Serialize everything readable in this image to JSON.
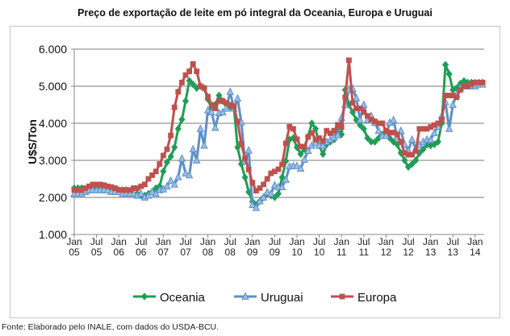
{
  "chart_data": {
    "type": "line",
    "title": "Preço de exportação de leite em pó integral da Oceania, Europa e Uruguai",
    "ylabel": "U$S/Ton",
    "xlabel": "",
    "ylim": [
      1000,
      6000
    ],
    "yticks": [
      "1.000",
      "2.000",
      "3.000",
      "4.000",
      "5.000",
      "6.000"
    ],
    "ytick_values": [
      1000,
      2000,
      3000,
      4000,
      5000,
      6000
    ],
    "xticks": [
      [
        "Jan",
        "05"
      ],
      [
        "Jul",
        "05"
      ],
      [
        "Jan",
        "06"
      ],
      [
        "Jul",
        "06"
      ],
      [
        "Jan",
        "07"
      ],
      [
        "Jul",
        "07"
      ],
      [
        "Jan",
        "08"
      ],
      [
        "Jul",
        "08"
      ],
      [
        "Jan",
        "09"
      ],
      [
        "Jul",
        "09"
      ],
      [
        "Jan",
        "10"
      ],
      [
        "Jul",
        "10"
      ],
      [
        "Jan",
        "11"
      ],
      [
        "Jul",
        "11"
      ],
      [
        "Jan",
        "12"
      ],
      [
        "Jul",
        "12"
      ],
      [
        "Jan",
        "13"
      ],
      [
        "Jul",
        "13"
      ],
      [
        "Jan",
        "14"
      ]
    ],
    "grid": true,
    "legend": "bottom",
    "x": [
      "2005-01",
      "2005-02",
      "2005-03",
      "2005-04",
      "2005-05",
      "2005-06",
      "2005-07",
      "2005-08",
      "2005-09",
      "2005-10",
      "2005-11",
      "2005-12",
      "2006-01",
      "2006-02",
      "2006-03",
      "2006-04",
      "2006-05",
      "2006-06",
      "2006-07",
      "2006-08",
      "2006-09",
      "2006-10",
      "2006-11",
      "2006-12",
      "2007-01",
      "2007-02",
      "2007-03",
      "2007-04",
      "2007-05",
      "2007-06",
      "2007-07",
      "2007-08",
      "2007-09",
      "2007-10",
      "2007-11",
      "2007-12",
      "2008-01",
      "2008-02",
      "2008-03",
      "2008-04",
      "2008-05",
      "2008-06",
      "2008-07",
      "2008-08",
      "2008-09",
      "2008-10",
      "2008-11",
      "2008-12",
      "2009-01",
      "2009-02",
      "2009-03",
      "2009-04",
      "2009-05",
      "2009-06",
      "2009-07",
      "2009-08",
      "2009-09",
      "2009-10",
      "2009-11",
      "2009-12",
      "2010-01",
      "2010-02",
      "2010-03",
      "2010-04",
      "2010-05",
      "2010-06",
      "2010-07",
      "2010-08",
      "2010-09",
      "2010-10",
      "2010-11",
      "2010-12",
      "2011-01",
      "2011-02",
      "2011-03",
      "2011-04",
      "2011-05",
      "2011-06",
      "2011-07",
      "2011-08",
      "2011-09",
      "2011-10",
      "2011-11",
      "2011-12",
      "2012-01",
      "2012-02",
      "2012-03",
      "2012-04",
      "2012-05",
      "2012-06",
      "2012-07",
      "2012-08",
      "2012-09",
      "2012-10",
      "2012-11",
      "2012-12",
      "2013-01",
      "2013-02",
      "2013-03",
      "2013-04",
      "2013-05",
      "2013-06",
      "2013-07",
      "2013-08",
      "2013-09",
      "2013-10",
      "2013-11",
      "2013-12",
      "2014-01",
      "2014-02",
      "2014-03"
    ],
    "series": [
      {
        "name": "Oceania",
        "color": "#1e9e55",
        "marker": "diamond",
        "values": [
          2250,
          2250,
          2250,
          2200,
          2200,
          2250,
          2250,
          2250,
          2200,
          2200,
          2200,
          2200,
          2200,
          2200,
          2200,
          2150,
          2100,
          2100,
          2050,
          2050,
          2100,
          2150,
          2250,
          2300,
          2700,
          2950,
          3100,
          3350,
          3850,
          4100,
          4600,
          5150,
          5050,
          4950,
          5000,
          4950,
          4650,
          4400,
          4500,
          4750,
          4600,
          4500,
          4450,
          4450,
          3350,
          2900,
          2540,
          2150,
          1890,
          1800,
          1900,
          2000,
          2100,
          2050,
          2000,
          2100,
          2540,
          2980,
          3560,
          3600,
          3350,
          3170,
          3300,
          3650,
          4000,
          3850,
          3400,
          3170,
          3430,
          3500,
          3560,
          3850,
          3700,
          4900,
          4500,
          4300,
          4090,
          3950,
          3850,
          3600,
          3500,
          3500,
          3600,
          3700,
          3700,
          3600,
          3500,
          3430,
          3200,
          3000,
          2820,
          2900,
          3000,
          3200,
          3300,
          3420,
          3400,
          3430,
          3500,
          4000,
          5580,
          5330,
          4900,
          4950,
          5070,
          5140,
          5100,
          5100,
          5100,
          5100,
          5100
        ]
      },
      {
        "name": "Uruguai",
        "color": "#5b8fc9",
        "marker": "triangle",
        "values": [
          2100,
          2100,
          2100,
          2150,
          2200,
          2200,
          2200,
          2200,
          2200,
          2200,
          2150,
          2150,
          2150,
          2100,
          2100,
          2100,
          2100,
          2050,
          2100,
          2000,
          2050,
          2150,
          2100,
          2200,
          2220,
          2300,
          2450,
          2350,
          2550,
          3050,
          2650,
          2600,
          3300,
          3000,
          3850,
          3400,
          4350,
          4300,
          3880,
          4280,
          4300,
          4400,
          4850,
          4400,
          4670,
          4030,
          2980,
          3270,
          1800,
          1720,
          1900,
          2000,
          2140,
          2100,
          2330,
          2280,
          2280,
          2480,
          2840,
          2850,
          2850,
          2780,
          3020,
          3260,
          3400,
          3470,
          3400,
          3400,
          3500,
          3560,
          3620,
          3680,
          4150,
          4500,
          4900,
          4930,
          4680,
          4090,
          4500,
          4090,
          4200,
          4020,
          3800,
          3660,
          3660,
          4020,
          4090,
          3630,
          3800,
          3430,
          3260,
          3560,
          3310,
          3420,
          3500,
          3560,
          3560,
          3740,
          3910,
          4200,
          4570,
          3850,
          4500,
          4780,
          4960,
          5000,
          5000,
          5000,
          5000,
          5050,
          5050
        ]
      },
      {
        "name": "Europa",
        "color": "#c0504d",
        "marker": "square",
        "values": [
          2200,
          2200,
          2200,
          2250,
          2300,
          2350,
          2350,
          2350,
          2330,
          2300,
          2280,
          2250,
          2200,
          2200,
          2200,
          2200,
          2250,
          2250,
          2300,
          2350,
          2500,
          2600,
          2700,
          2900,
          3130,
          3300,
          3670,
          4430,
          4850,
          5100,
          5300,
          5400,
          5600,
          5400,
          5000,
          4950,
          4720,
          4500,
          4400,
          4600,
          4600,
          4550,
          4500,
          4450,
          4050,
          3450,
          3050,
          2750,
          2400,
          2180,
          2250,
          2350,
          2500,
          2650,
          2700,
          2760,
          2890,
          3460,
          3910,
          3850,
          3570,
          3370,
          3370,
          3630,
          3740,
          3560,
          3600,
          3520,
          3800,
          3730,
          3800,
          3960,
          3900,
          4700,
          5700,
          4550,
          4400,
          4400,
          4300,
          4200,
          4100,
          4050,
          4000,
          4000,
          3800,
          3750,
          3750,
          3700,
          3500,
          3200,
          3150,
          3150,
          3250,
          3850,
          3850,
          3850,
          3900,
          3950,
          4000,
          4100,
          4750,
          4750,
          4750,
          4700,
          4900,
          5000,
          5000,
          5050,
          5100,
          5100,
          5100
        ]
      }
    ]
  },
  "footer": "Fonte: Elaborado pelo INALE, com dados do USDA-BCU."
}
